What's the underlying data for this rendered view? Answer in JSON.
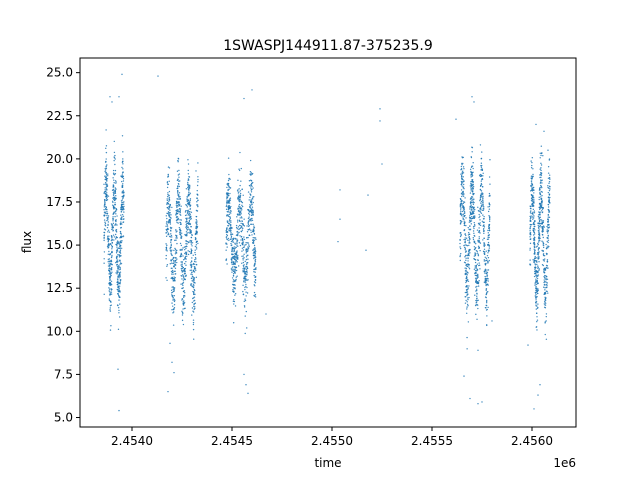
{
  "chart_data": {
    "type": "scatter",
    "title": "1SWASPJ144911.87-375235.9",
    "xlabel": "time",
    "ylabel": "flux",
    "x_offset_label": "1e6",
    "xlim": [
      2453740,
      2456220
    ],
    "ylim": [
      4.45,
      25.85
    ],
    "x_ticks": [
      2454000,
      2454500,
      2455000,
      2455500,
      2456000
    ],
    "x_tick_labels": [
      "2.4540",
      "2.4545",
      "2.4550",
      "2.4555",
      "2.4560"
    ],
    "y_ticks": [
      5.0,
      7.5,
      10.0,
      12.5,
      15.0,
      17.5,
      20.0,
      22.5,
      25.0
    ],
    "y_tick_labels": [
      "5.0",
      "7.5",
      "10.0",
      "12.5",
      "15.0",
      "17.5",
      "20.0",
      "22.5",
      "25.0"
    ],
    "point_color": "#1f77b4",
    "grid": false,
    "series": [
      {
        "clusters": [
          {
            "x_start": 2453860,
            "x_end": 2453960,
            "n": 650,
            "mean": 15.5,
            "amp": 2.8,
            "noise": 1.1,
            "period": 42
          },
          {
            "x_start": 2454170,
            "x_end": 2454330,
            "n": 800,
            "mean": 15.0,
            "amp": 2.6,
            "noise": 1.1,
            "period": 50
          },
          {
            "x_start": 2454470,
            "x_end": 2454620,
            "n": 750,
            "mean": 15.3,
            "amp": 2.2,
            "noise": 1.1,
            "period": 55
          },
          {
            "x_start": 2455640,
            "x_end": 2455790,
            "n": 800,
            "mean": 15.6,
            "amp": 2.9,
            "noise": 1.1,
            "period": 48
          },
          {
            "x_start": 2455990,
            "x_end": 2456090,
            "n": 650,
            "mean": 15.2,
            "amp": 3.0,
            "noise": 1.1,
            "period": 44
          }
        ],
        "points": [
          [
            2453900,
            23.3
          ],
          [
            2453950,
            24.9
          ],
          [
            2453890,
            23.6
          ],
          [
            2453935,
            23.6
          ],
          [
            2453935,
            5.4
          ],
          [
            2453930,
            7.8
          ],
          [
            2454130,
            24.8
          ],
          [
            2454200,
            8.2
          ],
          [
            2454210,
            7.6
          ],
          [
            2454190,
            9.3
          ],
          [
            2454180,
            6.5
          ],
          [
            2454320,
            19.3
          ],
          [
            2454330,
            18.8
          ],
          [
            2454560,
            23.5
          ],
          [
            2454600,
            24.0
          ],
          [
            2454560,
            7.5
          ],
          [
            2454570,
            6.9
          ],
          [
            2454580,
            6.4
          ],
          [
            2454670,
            11.0
          ],
          [
            2455040,
            18.2
          ],
          [
            2455040,
            16.5
          ],
          [
            2455030,
            15.2
          ],
          [
            2455180,
            17.9
          ],
          [
            2455170,
            14.7
          ],
          [
            2455240,
            22.9
          ],
          [
            2455240,
            22.2
          ],
          [
            2455250,
            19.7
          ],
          [
            2455620,
            22.3
          ],
          [
            2455660,
            7.4
          ],
          [
            2455690,
            6.1
          ],
          [
            2455700,
            23.6
          ],
          [
            2455710,
            23.3
          ],
          [
            2455730,
            5.8
          ],
          [
            2455750,
            5.9
          ],
          [
            2455730,
            8.9
          ],
          [
            2455800,
            10.6
          ],
          [
            2456020,
            22.0
          ],
          [
            2456010,
            5.5
          ],
          [
            2456030,
            6.3
          ],
          [
            2456040,
            6.9
          ],
          [
            2456060,
            21.6
          ],
          [
            2456080,
            20.5
          ],
          [
            2455980,
            9.2
          ]
        ]
      }
    ]
  }
}
